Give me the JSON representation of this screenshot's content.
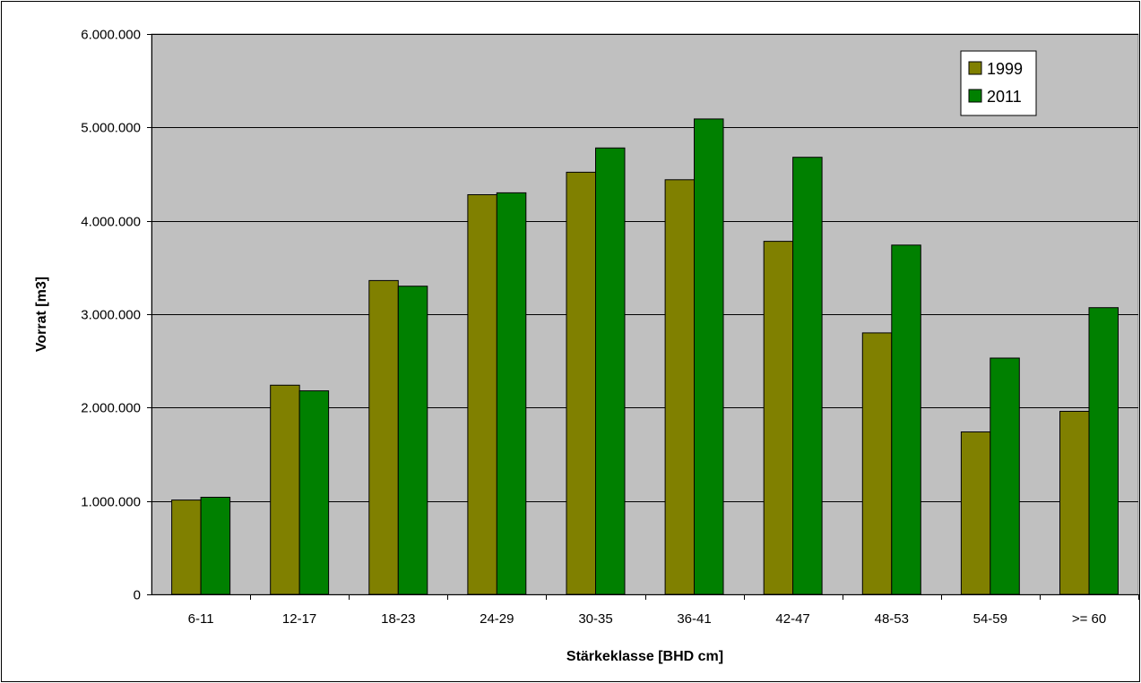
{
  "chart_data": {
    "type": "bar",
    "categories": [
      "6-11",
      "12-17",
      "18-23",
      "24-29",
      "30-35",
      "36-41",
      "42-47",
      "48-53",
      "54-59",
      ">= 60"
    ],
    "series": [
      {
        "name": "1999",
        "color": "#808000",
        "values": [
          1010000,
          2240000,
          3360000,
          4280000,
          4520000,
          4440000,
          3780000,
          2800000,
          1740000,
          1960000
        ]
      },
      {
        "name": "2011",
        "color": "#008000",
        "values": [
          1040000,
          2180000,
          3300000,
          4300000,
          4780000,
          5090000,
          4680000,
          3740000,
          2530000,
          3070000
        ]
      }
    ],
    "xlabel": "Stärkeklasse [BHD cm]",
    "ylabel": "Vorrat [m3]",
    "ylim": [
      0,
      6000000
    ],
    "yticks": [
      0,
      1000000,
      2000000,
      3000000,
      4000000,
      5000000,
      6000000
    ],
    "ytick_labels": [
      "0",
      "1.000.000",
      "2.000.000",
      "3.000.000",
      "4.000.000",
      "5.000.000",
      "6.000.000"
    ],
    "grid": true,
    "plot_background": "#c0c0c0",
    "legend_position": "top-right"
  }
}
